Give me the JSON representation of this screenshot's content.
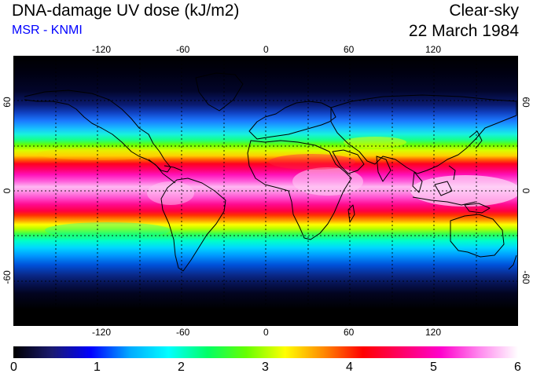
{
  "header": {
    "title": "DNA-damage UV dose (kJ/m2)",
    "subtitle": "MSR - KNMI",
    "condition": "Clear-sky",
    "date": "22 March 1984"
  },
  "axes": {
    "lon_ticks_top": [
      "-120",
      "-60",
      "0",
      "60",
      "120"
    ],
    "lon_ticks_bottom": [
      "-120",
      "-60",
      "0",
      "60",
      "120"
    ],
    "lat_ticks_left": [
      "60",
      "0",
      "-60"
    ],
    "lat_ticks_right": [
      "60",
      "0",
      "-60"
    ],
    "lon_range": [
      -180,
      180
    ],
    "lat_range": [
      -90,
      90
    ],
    "gridlines": "dotted, every 30 degrees"
  },
  "colorbar": {
    "labels": [
      "0",
      "1",
      "2",
      "3",
      "4",
      "5",
      "6"
    ],
    "range": [
      0,
      6
    ],
    "colors": [
      "#000000",
      "#1a1a70",
      "#0000ff",
      "#00aaff",
      "#00ffff",
      "#00ff66",
      "#66ff00",
      "#ffff00",
      "#ff8800",
      "#ff0000",
      "#ff0066",
      "#ff00cc",
      "#ff88ee",
      "#ffffff"
    ]
  },
  "map": {
    "field": "UV dose",
    "projection": "equirectangular",
    "coastlines": "black",
    "max_zone": "near equator, white/pink >5.5 kJ/m2"
  }
}
